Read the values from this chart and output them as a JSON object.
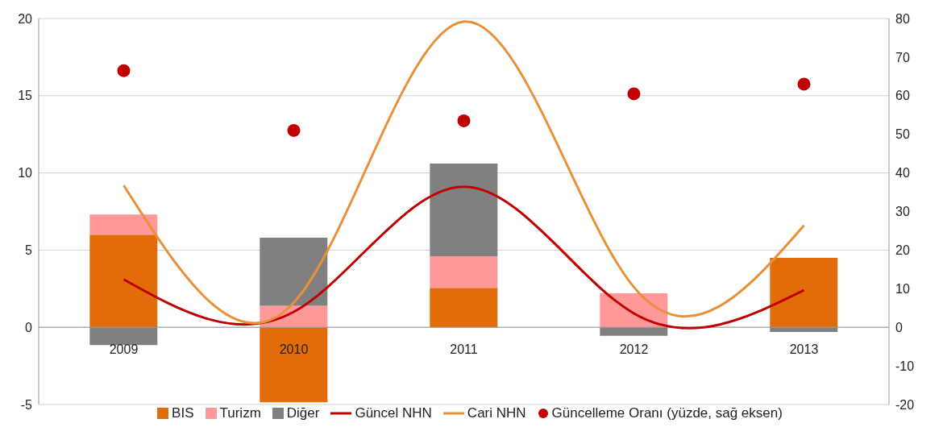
{
  "chart_data": {
    "type": "bar",
    "stacked": true,
    "categories": [
      "2009",
      "2010",
      "2011",
      "2012",
      "2013"
    ],
    "series": [
      {
        "name": "BIS",
        "color": "#e36c0a",
        "values": [
          6.0,
          -4.85,
          2.55,
          0,
          4.5
        ]
      },
      {
        "name": "Turizm",
        "color": "#ff9999",
        "values": [
          1.3,
          1.4,
          2.05,
          2.2,
          0
        ]
      },
      {
        "name": "Diğer",
        "color": "#808080",
        "values": [
          -1.15,
          4.4,
          6.0,
          -0.55,
          -0.3
        ]
      },
      {
        "name": "Güncel NHN",
        "type": "line",
        "color": "#c00000",
        "marker": "none",
        "values": [
          3.1,
          1.0,
          9.1,
          0.9,
          2.4
        ]
      },
      {
        "name": "Cari NHN",
        "type": "line",
        "color": "#e8913a",
        "marker": "none",
        "values": [
          9.2,
          1.6,
          19.8,
          2.6,
          6.6
        ]
      },
      {
        "name": "Güncelleme Oranı (yüzde, sağ eksen)",
        "type": "scatter",
        "axis": "y2",
        "marker": "circle",
        "color": "#c00000",
        "values": [
          66.5,
          51,
          53.5,
          60.5,
          63
        ]
      }
    ],
    "ylim": [
      -5,
      20
    ],
    "yticks": [
      -5,
      0,
      5,
      10,
      15,
      20
    ],
    "y2lim": [
      -20,
      80
    ],
    "y2ticks": [
      -20,
      -10,
      0,
      10,
      20,
      30,
      40,
      50,
      60,
      70,
      80
    ],
    "grid": "y",
    "legend": "bottom"
  }
}
